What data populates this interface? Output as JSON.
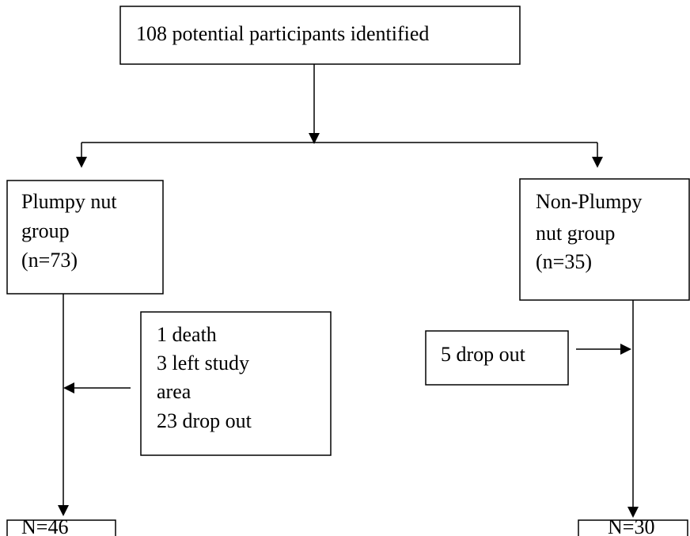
{
  "nodes": [
    {
      "lines": [
        "108 potential participants identified"
      ]
    },
    {
      "lines": [
        "Plumpy nut",
        "group",
        "(n=73)"
      ]
    },
    {
      "lines": [
        "Non-Plumpy",
        "nut group",
        "(n=35)"
      ]
    },
    {
      "lines": [
        "1 death",
        "3 left study",
        "area",
        "23 drop out"
      ]
    },
    {
      "lines": [
        "5 drop out"
      ]
    },
    {
      "lines": [
        "N=46"
      ]
    },
    {
      "lines": [
        "N=30"
      ]
    }
  ]
}
